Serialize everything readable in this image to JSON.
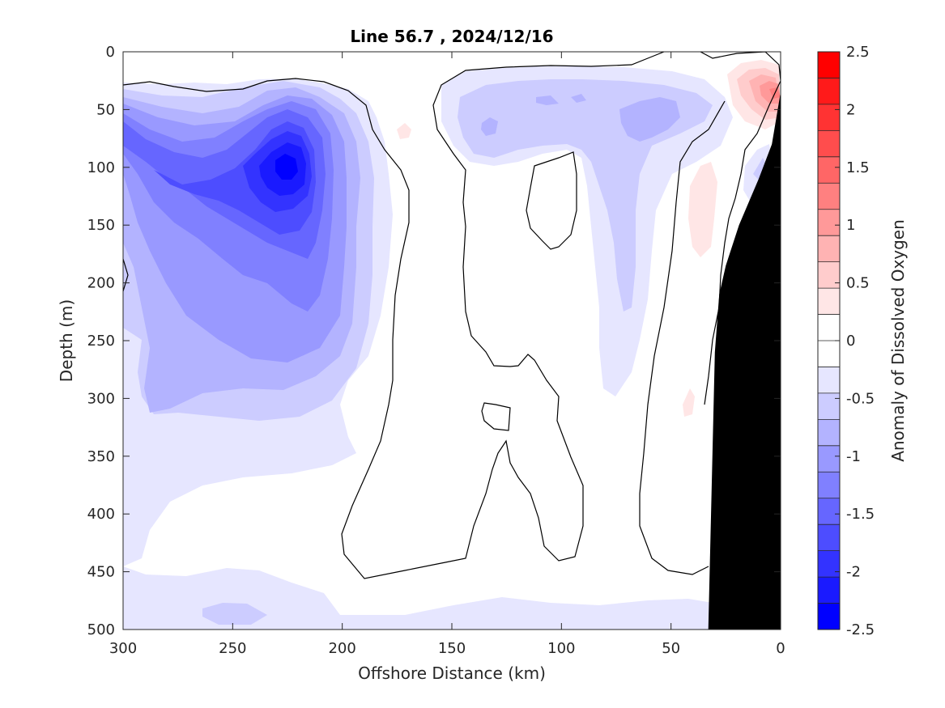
{
  "chart_data": {
    "type": "contour",
    "title": "Line 56.7 , 2024/12/16",
    "xlabel": "Offshore Distance (km)",
    "ylabel": "Depth (m)",
    "colorbar_label": "Anomaly of Dissolved Oxygen",
    "xlim": [
      300,
      0
    ],
    "ylim": [
      500,
      0
    ],
    "x_ticks": [
      300,
      250,
      200,
      150,
      100,
      50,
      0
    ],
    "y_ticks": [
      0,
      50,
      100,
      150,
      200,
      250,
      300,
      350,
      400,
      450,
      500
    ],
    "colorbar_range": [
      -2.5,
      2.5
    ],
    "colorbar_ticks": [
      2.5,
      2,
      1.5,
      1,
      0.5,
      0,
      -0.5,
      -1,
      -1.5,
      -2,
      -2.5
    ],
    "contour_levels": [
      -2.5,
      -2.25,
      -2,
      -1.75,
      -1.5,
      -1.25,
      -1,
      -0.75,
      -0.5,
      -0.25,
      0.25,
      0.5,
      0.75,
      1,
      1.25,
      1.5,
      1.75,
      2,
      2.25,
      2.5
    ],
    "level_colors": [
      "#0000ff",
      "#1a1aff",
      "#3333ff",
      "#4d4dff",
      "#6666ff",
      "#8080ff",
      "#9999ff",
      "#b3b3ff",
      "#ccccff",
      "#e6e6ff",
      "#ffffff",
      "#ffffff",
      "#ffe6e6",
      "#ffcccc",
      "#ffb3b3",
      "#ff9999",
      "#ff8080",
      "#ff6666",
      "#ff4d4d",
      "#ff3333",
      "#ff1a1a",
      "#ff0000"
    ],
    "features": [
      {
        "kind": "low",
        "x": 220,
        "y": 95,
        "value": -2.1
      },
      {
        "kind": "low",
        "x": 60,
        "y": 55,
        "value": -1.0
      },
      {
        "kind": "high",
        "x": 10,
        "y": 35,
        "value": 1.5
      },
      {
        "kind": "high",
        "x": 38,
        "y": 150,
        "value": 0.3
      }
    ],
    "bathymetry_color": "#000000",
    "bathymetry": [
      [
        0,
        35
      ],
      [
        4,
        80
      ],
      [
        10,
        110
      ],
      [
        19,
        150
      ],
      [
        25,
        185
      ],
      [
        28,
        210
      ],
      [
        30,
        260
      ],
      [
        31,
        340
      ],
      [
        32,
        420
      ],
      [
        33,
        500
      ],
      [
        0,
        500
      ]
    ]
  }
}
